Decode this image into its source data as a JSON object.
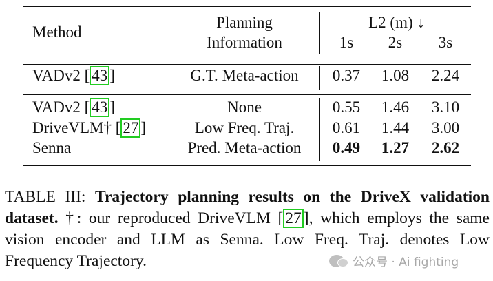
{
  "table": {
    "headers": {
      "method": "Method",
      "planning_line1": "Planning",
      "planning_line2": "Information",
      "l2_group": "L2 (m) ↓",
      "t1": "1s",
      "t2": "2s",
      "t3": "3s"
    },
    "rows": [
      {
        "method": "VADv2 ",
        "cite": "43",
        "bracket_close": "]",
        "planning": "G.T. Meta-action",
        "v1": "0.37",
        "v2": "1.08",
        "v3": "2.24",
        "bold": false
      },
      {
        "method": "VADv2 ",
        "cite": "43",
        "bracket_close": "]",
        "planning": "None",
        "v1": "0.55",
        "v2": "1.46",
        "v3": "3.10",
        "bold": false
      },
      {
        "method": "DriveVLM† ",
        "cite": "27",
        "bracket_close": "]",
        "planning": "Low Freq. Traj.",
        "v1": "0.61",
        "v2": "1.44",
        "v3": "3.00",
        "bold": false
      },
      {
        "method": "Senna",
        "cite": "",
        "bracket_close": "",
        "planning": "Pred. Meta-action",
        "v1": "0.49",
        "v2": "1.27",
        "v3": "2.62",
        "bold": true
      }
    ]
  },
  "caption": {
    "label": "TABLE III: ",
    "title": "Trajectory planning results on the DriveX validation dataset.",
    "text_a": " †: our reproduced DriveVLM [",
    "cite": "27",
    "text_b": "], which employs the same vision encoder and LLM as Senna. Low Freq. Traj. denotes Low Frequency Trajectory."
  },
  "watermark": "公众号 · Ai fighting"
}
